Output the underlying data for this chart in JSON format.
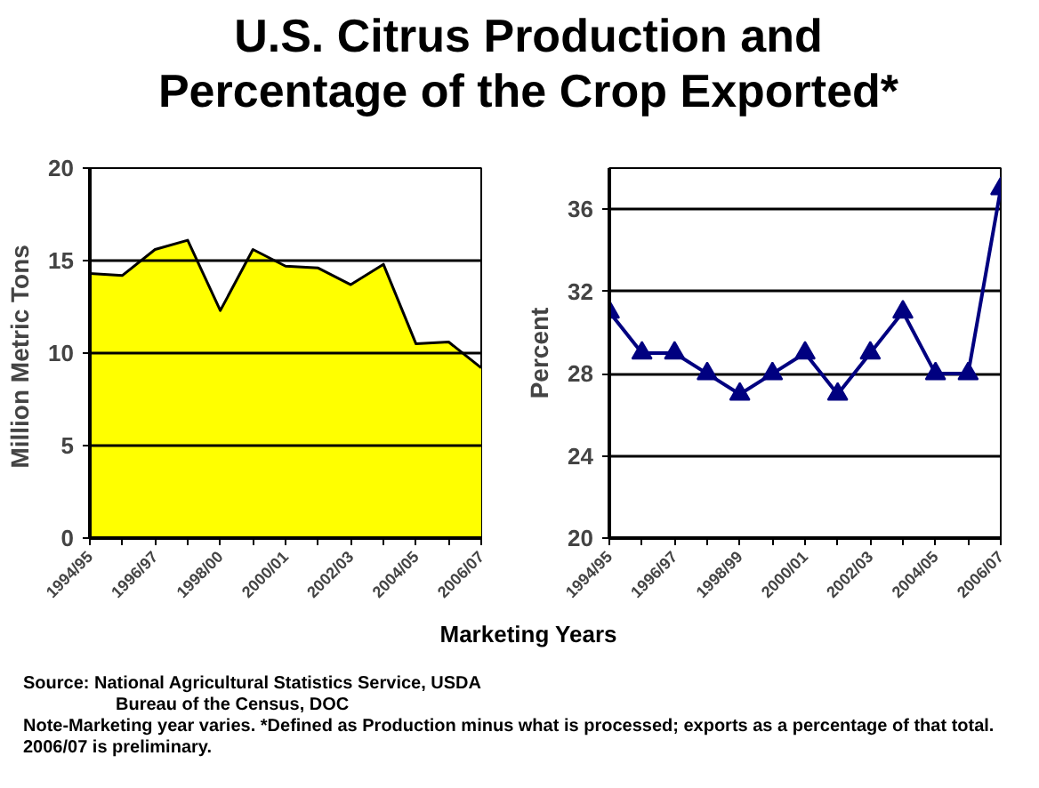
{
  "chart_data": [
    {
      "type": "area",
      "title": "U.S. Citrus Production and Percentage of the Crop Exported*",
      "ylabel": "Million  Metric Tons",
      "categories": [
        "1994/95",
        null,
        "1996/97",
        null,
        "1998/00",
        null,
        "2000/01",
        null,
        "2002/03",
        null,
        "2004/05",
        null,
        "2006/07"
      ],
      "series": [
        {
          "color": "#ffff00",
          "values": [
            14.3,
            14.2,
            15.6,
            16.1,
            12.3,
            15.6,
            14.7,
            14.6,
            13.7,
            14.8,
            10.5,
            10.6,
            9.2
          ]
        }
      ],
      "ylim": [
        0,
        20
      ],
      "yticks": [
        0,
        5,
        10,
        15,
        20
      ],
      "grid": "y"
    },
    {
      "type": "line",
      "ylabel": "Percent",
      "xlabel": "Marketing Years",
      "categories": [
        "1994/95",
        null,
        "1996/97",
        null,
        "1998/99",
        null,
        "2000/01",
        null,
        "2002/03",
        null,
        "2004/05",
        null,
        "2006/07"
      ],
      "series": [
        {
          "color": "#000080",
          "values": [
            31,
            29,
            29,
            28,
            27,
            28,
            29,
            27,
            29,
            31,
            28,
            28,
            37
          ]
        }
      ],
      "ylim": [
        20,
        38
      ],
      "yticks": [
        20,
        24,
        28,
        32,
        36
      ],
      "grid": "y",
      "marker": "triangle",
      "annotations": [
        "Source: National Agricultural Statistics Service, USDA",
        "Bureau of the Census, DOC",
        "Note-Marketing year varies.  *Defined as Production minus what is processed; exports as a percentage of that total.  2006/07 is preliminary."
      ]
    }
  ]
}
